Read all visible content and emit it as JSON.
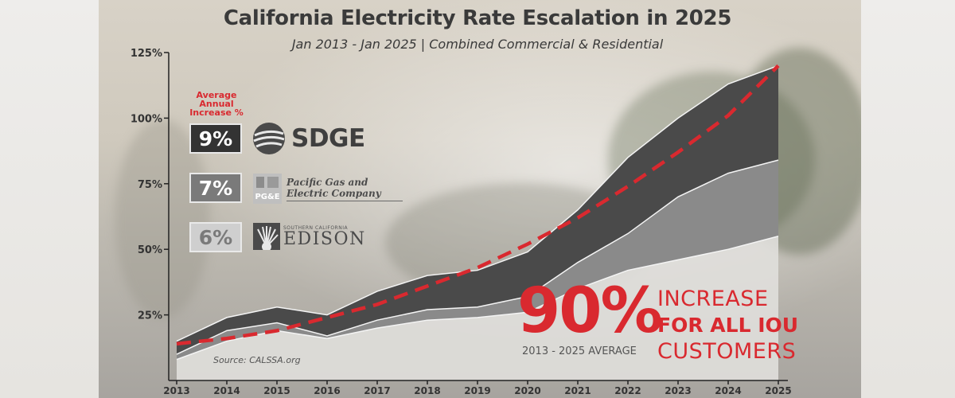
{
  "colors": {
    "accent_red": "#d9292f",
    "sdge_fill": "#4a4a4a",
    "pge_fill": "#8a8a8a",
    "sce_fill": "#e0dfdc",
    "sdge_box": "#333333",
    "pge_box": "#7a7a7a",
    "sce_box": "#cfcfcf",
    "sce_box_text": "#7a7a7a"
  },
  "header": {
    "title": "California Electricity Rate Escalation in 2025",
    "subtitle": "Jan 2013 - Jan 2025  |  Combined Commercial & Residential"
  },
  "legend": {
    "avg_label_lines": [
      "Average",
      "Annual",
      "Increase %"
    ],
    "utilities": [
      {
        "pct": "9%",
        "name": "SDGE",
        "icon": "sdge-globe-icon"
      },
      {
        "pct": "7%",
        "name_lines": [
          "Pacific Gas and",
          "Electric Company"
        ],
        "icon": "pge-logo-icon"
      },
      {
        "pct": "6%",
        "name_small": "SOUTHERN CALIFORNIA",
        "name_big": "EDISON",
        "icon": "edison-logo-icon"
      }
    ]
  },
  "callout": {
    "big_value": "90%",
    "line1": "INCREASE",
    "line2": "FOR ALL IOU",
    "line3": "CUSTOMERS",
    "subtext": "2013 - 2025 AVERAGE"
  },
  "source": "Source: CALSSA.org",
  "chart_data": {
    "type": "area",
    "title": "California Electricity Rate Escalation in 2025",
    "subtitle": "Jan 2013 - Jan 2025  |  Combined Commercial & Residential",
    "xlabel": "",
    "ylabel": "",
    "x": [
      "2013",
      "2014",
      "2015",
      "2016",
      "2017",
      "2018",
      "2019",
      "2020",
      "2021",
      "2022",
      "2023",
      "2024",
      "2025"
    ],
    "yticks": [
      "25%",
      "50%",
      "75%",
      "100%",
      "125%"
    ],
    "ylim": [
      0,
      125
    ],
    "grid": false,
    "series": [
      {
        "name": "SDGE",
        "values": [
          15,
          24,
          28,
          25,
          34,
          40,
          42,
          49,
          65,
          85,
          100,
          113,
          120
        ]
      },
      {
        "name": "Pacific Gas and Electric Company",
        "values": [
          10,
          19,
          22,
          17,
          23,
          27,
          28,
          32,
          45,
          56,
          70,
          79,
          84
        ]
      },
      {
        "name": "EDISON",
        "values": [
          8,
          15,
          19,
          16,
          20,
          23,
          24,
          26,
          35,
          42,
          46,
          50,
          55
        ]
      },
      {
        "name": "90% INCREASE FOR ALL IOU CUSTOMERS",
        "style": "dashed",
        "values": [
          14,
          16,
          19,
          24,
          29,
          36,
          43,
          52,
          62,
          74,
          87,
          101,
          120
        ]
      }
    ]
  }
}
